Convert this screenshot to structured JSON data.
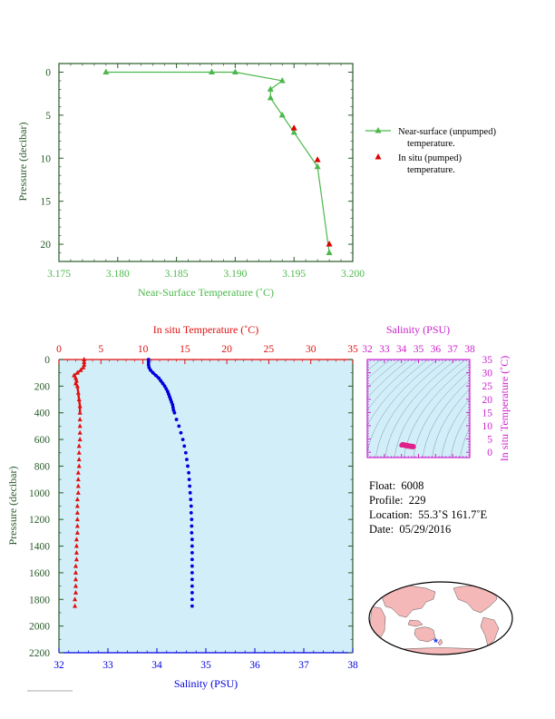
{
  "colors": {
    "top_green": "#4cb84c",
    "temp_red": "#e01010",
    "sal_blue": "#0000dd",
    "magenta": "#cc22cc",
    "axis_dark": "#2a5a2a",
    "panel_bg": "#d2eef8",
    "marker_red": "#dd0000"
  },
  "chart_data": [
    {
      "type": "line",
      "xlabel": "Near-Surface Temperature (˚C)",
      "ylabel": "Pressure (decibar)",
      "xlim": [
        3.175,
        3.2
      ],
      "ylim": [
        22,
        -1
      ],
      "x_ticks": [
        "3.175",
        "3.180",
        "3.185",
        "3.190",
        "3.195",
        "3.200"
      ],
      "y_ticks": [
        "0",
        "5",
        "10",
        "15",
        "20"
      ],
      "legend_position": "right",
      "series": [
        {
          "name": "Near-surface (unpumped) temperature.",
          "legend_line1": "Near-surface (unpumped)",
          "legend_line2": "temperature.",
          "x": [
            3.179,
            3.188,
            3.19,
            3.194,
            3.193,
            3.193,
            3.194,
            3.195,
            3.197,
            3.198
          ],
          "y": [
            0,
            0,
            0,
            1,
            2,
            3,
            5,
            7,
            11,
            21
          ]
        },
        {
          "name": "In situ (pumped) temperature.",
          "legend_line1": "In situ (pumped)",
          "legend_line2": "temperature.",
          "x": [
            3.195,
            3.197,
            3.198
          ],
          "y": [
            6.5,
            10.2,
            20
          ]
        }
      ]
    },
    {
      "type": "scatter",
      "ylabel": "Pressure (decibar)",
      "top_xlabel": "In situ Temperature (˚C)",
      "bottom_xlabel": "Salinity (PSU)",
      "temp_lim": [
        0,
        35
      ],
      "sal_lim": [
        32,
        38
      ],
      "ylim": [
        2200,
        0
      ],
      "temp_ticks": [
        "0",
        "5",
        "10",
        "15",
        "20",
        "25",
        "30",
        "35"
      ],
      "sal_ticks": [
        "32",
        "33",
        "34",
        "35",
        "36",
        "37",
        "38"
      ],
      "y_ticks": [
        "0",
        "200",
        "400",
        "600",
        "800",
        "1000",
        "1200",
        "1400",
        "1600",
        "1800",
        "2000",
        "2200"
      ],
      "temperature": {
        "p": [
          0,
          20,
          40,
          60,
          80,
          100,
          120,
          140,
          160,
          180,
          200,
          250,
          300,
          350,
          400,
          450,
          500,
          550,
          600,
          650,
          700,
          750,
          800,
          850,
          900,
          950,
          1000,
          1050,
          1100,
          1150,
          1200,
          1250,
          1300,
          1350,
          1400,
          1450,
          1500,
          1550,
          1600,
          1650,
          1700,
          1750,
          1800,
          1850
        ],
        "t": [
          3.0,
          3.0,
          3.0,
          2.9,
          2.6,
          2.2,
          1.8,
          2.0,
          2.1,
          2.0,
          2.2,
          2.3,
          2.4,
          2.5,
          2.5,
          2.5,
          2.5,
          2.5,
          2.5,
          2.4,
          2.4,
          2.4,
          2.4,
          2.3,
          2.3,
          2.3,
          2.3,
          2.2,
          2.2,
          2.2,
          2.2,
          2.2,
          2.2,
          2.1,
          2.1,
          2.1,
          2.1,
          2.0,
          2.0,
          2.0,
          2.0,
          2.0,
          1.9,
          1.9
        ]
      },
      "salinity": {
        "p": [
          0,
          20,
          40,
          60,
          80,
          100,
          120,
          140,
          160,
          180,
          200,
          220,
          240,
          260,
          280,
          300,
          320,
          340,
          360,
          380,
          400,
          450,
          500,
          550,
          600,
          650,
          700,
          750,
          800,
          850,
          900,
          950,
          1000,
          1050,
          1100,
          1150,
          1200,
          1250,
          1300,
          1350,
          1400,
          1450,
          1500,
          1550,
          1600,
          1650,
          1700,
          1750,
          1800,
          1850
        ],
        "s": [
          33.83,
          33.83,
          33.83,
          33.84,
          33.87,
          33.92,
          33.98,
          34.04,
          34.08,
          34.12,
          34.16,
          34.19,
          34.22,
          34.24,
          34.26,
          34.28,
          34.3,
          34.32,
          34.33,
          34.34,
          34.36,
          34.4,
          34.45,
          34.49,
          34.53,
          34.56,
          34.59,
          34.61,
          34.63,
          34.65,
          34.66,
          34.67,
          34.68,
          34.69,
          34.7,
          34.7,
          34.71,
          34.71,
          34.71,
          34.72,
          34.72,
          34.72,
          34.72,
          34.72,
          34.72,
          34.72,
          34.72,
          34.72,
          34.72,
          34.72
        ]
      }
    },
    {
      "type": "scatter",
      "xlabel": "Salinity (PSU)",
      "ylabel": "In situ Temperature (˚C)",
      "xlim": [
        32,
        38
      ],
      "ylim": [
        -2,
        35
      ],
      "x_ticks": [
        "32",
        "33",
        "34",
        "35",
        "36",
        "37",
        "38"
      ],
      "y_ticks": [
        "0",
        "5",
        "10",
        "15",
        "20",
        "25",
        "30",
        "35"
      ],
      "points": {
        "s": [
          34.05,
          34.15,
          34.3,
          34.4,
          34.5,
          34.6,
          34.7,
          34.72,
          34.65,
          34.55,
          34.45,
          34.35,
          34.25,
          34.12,
          34.0
        ],
        "t": [
          3.0,
          3.0,
          2.8,
          2.6,
          2.5,
          2.4,
          2.3,
          2.0,
          1.9,
          2.0,
          2.1,
          2.2,
          2.3,
          2.5,
          2.6
        ]
      }
    }
  ],
  "info": {
    "float_label": "Float:",
    "float_value": "6008",
    "profile_label": "Profile:",
    "profile_value": "229",
    "location_label": "Location:",
    "location_value": "55.3˚S  161.7˚E",
    "date_label": "Date:",
    "date_value": "05/29/2016"
  },
  "map": {
    "marker_lat": -55.3,
    "marker_lon": 161.7,
    "center_lon": 180
  }
}
